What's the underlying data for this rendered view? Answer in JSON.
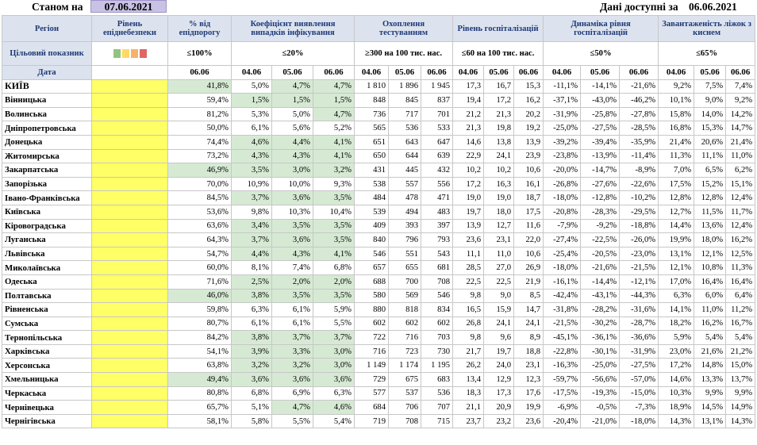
{
  "header": {
    "as_of_label": "Станом на",
    "as_of_date": "07.06.2021",
    "data_label": "Дані доступні за",
    "data_date": "06.06.2021"
  },
  "columns": {
    "region": "Регіон",
    "risk_level": "Рівень епіднебезпеки",
    "pct_threshold": "% від епідпорогу",
    "detection": "Коефіцієнт виявлення випадків інфікування",
    "testing": "Охоплення тестуванням",
    "hosp_level": "Рівень госпіталізацій",
    "hosp_dynamics": "Динаміка рівня госпіталізацій",
    "oxygen_load": "Завантаженість ліжок з киснем"
  },
  "target_row": {
    "label": "Цільовий показник",
    "pct_threshold": "≤100%",
    "detection": "≤20%",
    "testing": "≥300 на 100 тис. нас.",
    "hosp_level": "≤60 на 100 тис. нас.",
    "hosp_dynamics": "≤50%",
    "oxygen_load": "≤65%",
    "swatch_colors": [
      "#93c47d",
      "#ffd966",
      "#f6b26b",
      "#e06666"
    ]
  },
  "dates_row": {
    "label": "Дата",
    "pct_date": "06.06",
    "triple": [
      "04.06",
      "05.06",
      "06.06"
    ]
  },
  "rows": [
    {
      "name": "КИЇВ",
      "pct": "41,8%",
      "det": [
        "5,0%",
        "4,7%",
        "4,7%"
      ],
      "test": [
        "1 810",
        "1 896",
        "1 945"
      ],
      "hosp": [
        "17,3",
        "16,7",
        "15,3"
      ],
      "dyn": [
        "-11,1%",
        "-14,1%",
        "-21,6%"
      ],
      "oxy": [
        "9,2%",
        "7,5%",
        "7,4%"
      ]
    },
    {
      "name": "Вінницька",
      "pct": "59,4%",
      "det": [
        "1,5%",
        "1,5%",
        "1,5%"
      ],
      "test": [
        "848",
        "845",
        "837"
      ],
      "hosp": [
        "19,4",
        "17,2",
        "16,2"
      ],
      "dyn": [
        "-37,1%",
        "-43,0%",
        "-46,2%"
      ],
      "oxy": [
        "10,1%",
        "9,0%",
        "9,2%"
      ]
    },
    {
      "name": "Волинська",
      "pct": "81,2%",
      "det": [
        "5,3%",
        "5,0%",
        "4,7%"
      ],
      "test": [
        "736",
        "717",
        "701"
      ],
      "hosp": [
        "21,2",
        "21,3",
        "20,2"
      ],
      "dyn": [
        "-31,9%",
        "-25,8%",
        "-27,8%"
      ],
      "oxy": [
        "15,8%",
        "14,0%",
        "14,2%"
      ]
    },
    {
      "name": "Дніпропетровська",
      "pct": "50,0%",
      "det": [
        "6,1%",
        "5,6%",
        "5,2%"
      ],
      "test": [
        "565",
        "536",
        "533"
      ],
      "hosp": [
        "21,3",
        "19,8",
        "19,2"
      ],
      "dyn": [
        "-25,0%",
        "-27,5%",
        "-28,5%"
      ],
      "oxy": [
        "16,8%",
        "15,3%",
        "14,7%"
      ]
    },
    {
      "name": "Донецька",
      "pct": "74,4%",
      "det": [
        "4,6%",
        "4,4%",
        "4,1%"
      ],
      "test": [
        "651",
        "643",
        "647"
      ],
      "hosp": [
        "14,6",
        "13,8",
        "13,9"
      ],
      "dyn": [
        "-39,2%",
        "-39,4%",
        "-35,9%"
      ],
      "oxy": [
        "21,4%",
        "20,6%",
        "21,4%"
      ]
    },
    {
      "name": "Житомирська",
      "pct": "73,2%",
      "det": [
        "4,3%",
        "4,3%",
        "4,1%"
      ],
      "test": [
        "650",
        "644",
        "639"
      ],
      "hosp": [
        "22,9",
        "24,1",
        "23,9"
      ],
      "dyn": [
        "-23,8%",
        "-13,9%",
        "-11,4%"
      ],
      "oxy": [
        "11,3%",
        "11,1%",
        "11,0%"
      ]
    },
    {
      "name": "Закарпатська",
      "pct": "46,9%",
      "det": [
        "3,5%",
        "3,0%",
        "3,2%"
      ],
      "test": [
        "431",
        "445",
        "432"
      ],
      "hosp": [
        "10,2",
        "10,2",
        "10,6"
      ],
      "dyn": [
        "-20,0%",
        "-14,7%",
        "-8,9%"
      ],
      "oxy": [
        "7,0%",
        "6,5%",
        "6,2%"
      ]
    },
    {
      "name": "Запорізька",
      "pct": "70,0%",
      "det": [
        "10,9%",
        "10,0%",
        "9,3%"
      ],
      "test": [
        "538",
        "557",
        "556"
      ],
      "hosp": [
        "17,2",
        "16,3",
        "16,1"
      ],
      "dyn": [
        "-26,8%",
        "-27,6%",
        "-22,6%"
      ],
      "oxy": [
        "17,5%",
        "15,2%",
        "15,1%"
      ]
    },
    {
      "name": "Івано-Франківська",
      "pct": "84,5%",
      "det": [
        "3,7%",
        "3,6%",
        "3,5%"
      ],
      "test": [
        "484",
        "478",
        "471"
      ],
      "hosp": [
        "19,0",
        "19,0",
        "18,7"
      ],
      "dyn": [
        "-18,0%",
        "-12,8%",
        "-10,2%"
      ],
      "oxy": [
        "12,8%",
        "12,8%",
        "12,4%"
      ]
    },
    {
      "name": "Київська",
      "pct": "53,6%",
      "det": [
        "9,8%",
        "10,3%",
        "10,4%"
      ],
      "test": [
        "539",
        "494",
        "483"
      ],
      "hosp": [
        "19,7",
        "18,0",
        "17,5"
      ],
      "dyn": [
        "-20,8%",
        "-28,3%",
        "-29,5%"
      ],
      "oxy": [
        "12,7%",
        "11,5%",
        "11,7%"
      ]
    },
    {
      "name": "Кіровоградська",
      "pct": "63,6%",
      "det": [
        "3,4%",
        "3,5%",
        "3,5%"
      ],
      "test": [
        "409",
        "393",
        "397"
      ],
      "hosp": [
        "13,9",
        "12,7",
        "11,6"
      ],
      "dyn": [
        "-7,9%",
        "-9,2%",
        "-18,8%"
      ],
      "oxy": [
        "14,4%",
        "13,6%",
        "12,4%"
      ]
    },
    {
      "name": "Луганська",
      "pct": "64,3%",
      "det": [
        "3,7%",
        "3,6%",
        "3,5%"
      ],
      "test": [
        "840",
        "796",
        "793"
      ],
      "hosp": [
        "23,6",
        "23,1",
        "22,0"
      ],
      "dyn": [
        "-27,4%",
        "-22,5%",
        "-26,0%"
      ],
      "oxy": [
        "19,9%",
        "18,0%",
        "16,2%"
      ]
    },
    {
      "name": "Львівська",
      "pct": "54,7%",
      "det": [
        "4,4%",
        "4,3%",
        "4,1%"
      ],
      "test": [
        "546",
        "551",
        "543"
      ],
      "hosp": [
        "11,1",
        "11,0",
        "10,6"
      ],
      "dyn": [
        "-25,4%",
        "-20,5%",
        "-23,0%"
      ],
      "oxy": [
        "13,1%",
        "12,1%",
        "12,5%"
      ]
    },
    {
      "name": "Миколаївська",
      "pct": "60,0%",
      "det": [
        "8,1%",
        "7,4%",
        "6,8%"
      ],
      "test": [
        "657",
        "655",
        "681"
      ],
      "hosp": [
        "28,5",
        "27,0",
        "26,9"
      ],
      "dyn": [
        "-18,0%",
        "-21,6%",
        "-21,5%"
      ],
      "oxy": [
        "12,1%",
        "10,8%",
        "11,3%"
      ]
    },
    {
      "name": "Одеська",
      "pct": "71,6%",
      "det": [
        "2,5%",
        "2,0%",
        "2,0%"
      ],
      "test": [
        "688",
        "700",
        "708"
      ],
      "hosp": [
        "22,5",
        "22,5",
        "21,9"
      ],
      "dyn": [
        "-16,1%",
        "-14,4%",
        "-12,1%"
      ],
      "oxy": [
        "17,0%",
        "16,4%",
        "16,4%"
      ]
    },
    {
      "name": "Полтавська",
      "pct": "46,0%",
      "det": [
        "3,8%",
        "3,5%",
        "3,5%"
      ],
      "test": [
        "580",
        "569",
        "546"
      ],
      "hosp": [
        "9,8",
        "9,0",
        "8,5"
      ],
      "dyn": [
        "-42,4%",
        "-43,1%",
        "-44,3%"
      ],
      "oxy": [
        "6,3%",
        "6,0%",
        "6,4%"
      ]
    },
    {
      "name": "Рівненська",
      "pct": "59,8%",
      "det": [
        "6,3%",
        "6,1%",
        "5,9%"
      ],
      "test": [
        "880",
        "818",
        "834"
      ],
      "hosp": [
        "16,5",
        "15,9",
        "14,7"
      ],
      "dyn": [
        "-31,8%",
        "-28,2%",
        "-31,6%"
      ],
      "oxy": [
        "14,1%",
        "11,0%",
        "11,2%"
      ]
    },
    {
      "name": "Сумська",
      "pct": "80,7%",
      "det": [
        "6,1%",
        "6,1%",
        "5,5%"
      ],
      "test": [
        "602",
        "602",
        "602"
      ],
      "hosp": [
        "26,8",
        "24,1",
        "24,1"
      ],
      "dyn": [
        "-21,5%",
        "-30,2%",
        "-28,7%"
      ],
      "oxy": [
        "18,2%",
        "16,2%",
        "16,7%"
      ]
    },
    {
      "name": "Тернопільська",
      "pct": "84,2%",
      "det": [
        "3,8%",
        "3,7%",
        "3,7%"
      ],
      "test": [
        "722",
        "716",
        "703"
      ],
      "hosp": [
        "9,8",
        "9,6",
        "8,9"
      ],
      "dyn": [
        "-45,1%",
        "-36,1%",
        "-36,6%"
      ],
      "oxy": [
        "5,9%",
        "5,4%",
        "5,4%"
      ]
    },
    {
      "name": "Харківська",
      "pct": "54,1%",
      "det": [
        "3,9%",
        "3,3%",
        "3,0%"
      ],
      "test": [
        "716",
        "723",
        "730"
      ],
      "hosp": [
        "21,7",
        "19,7",
        "18,8"
      ],
      "dyn": [
        "-22,8%",
        "-30,1%",
        "-31,9%"
      ],
      "oxy": [
        "23,0%",
        "21,6%",
        "21,2%"
      ]
    },
    {
      "name": "Херсонська",
      "pct": "63,8%",
      "det": [
        "3,2%",
        "3,2%",
        "3,0%"
      ],
      "test": [
        "1 149",
        "1 174",
        "1 195"
      ],
      "hosp": [
        "26,2",
        "24,0",
        "23,1"
      ],
      "dyn": [
        "-16,3%",
        "-25,0%",
        "-27,5%"
      ],
      "oxy": [
        "17,2%",
        "14,8%",
        "15,0%"
      ]
    },
    {
      "name": "Хмельницька",
      "pct": "49,4%",
      "det": [
        "3,6%",
        "3,6%",
        "3,6%"
      ],
      "test": [
        "729",
        "675",
        "683"
      ],
      "hosp": [
        "13,4",
        "12,9",
        "12,3"
      ],
      "dyn": [
        "-59,7%",
        "-56,6%",
        "-57,0%"
      ],
      "oxy": [
        "14,6%",
        "13,3%",
        "13,7%"
      ]
    },
    {
      "name": "Черкаська",
      "pct": "80,8%",
      "det": [
        "6,8%",
        "6,9%",
        "6,3%"
      ],
      "test": [
        "577",
        "537",
        "536"
      ],
      "hosp": [
        "18,3",
        "17,3",
        "17,6"
      ],
      "dyn": [
        "-17,5%",
        "-19,3%",
        "-15,0%"
      ],
      "oxy": [
        "10,3%",
        "9,9%",
        "9,9%"
      ]
    },
    {
      "name": "Чернівецька",
      "pct": "65,7%",
      "det": [
        "5,1%",
        "4,7%",
        "4,6%"
      ],
      "test": [
        "684",
        "706",
        "707"
      ],
      "hosp": [
        "21,1",
        "20,9",
        "19,9"
      ],
      "dyn": [
        "-6,9%",
        "-0,5%",
        "-7,3%"
      ],
      "oxy": [
        "18,9%",
        "14,5%",
        "14,9%"
      ]
    },
    {
      "name": "Чернігівська",
      "pct": "58,1%",
      "det": [
        "5,8%",
        "5,5%",
        "5,4%"
      ],
      "test": [
        "719",
        "708",
        "715"
      ],
      "hosp": [
        "23,7",
        "23,2",
        "23,6"
      ],
      "dyn": [
        "-20,4%",
        "-21,0%",
        "-18,0%"
      ],
      "oxy": [
        "14,3%",
        "13,1%",
        "14,3%"
      ]
    }
  ]
}
